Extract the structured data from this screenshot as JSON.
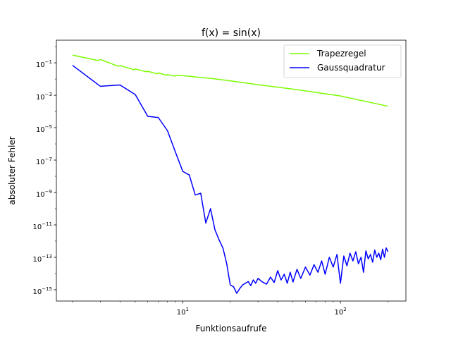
{
  "chart_data": {
    "type": "line",
    "title": "f(x) = sin(x)",
    "xlabel": "Funktionsaufrufe",
    "ylabel": "absoluter Fehler",
    "xscale": "log",
    "yscale": "log",
    "xlim": [
      1.58,
      260
    ],
    "ylim": [
      2e-16,
      2.5
    ],
    "legend": "top-right",
    "grid": false,
    "x_ticks": [
      {
        "value": 10,
        "label": "10",
        "sup": "1"
      },
      {
        "value": 100,
        "label": "10",
        "sup": "2"
      }
    ],
    "y_ticks": [
      {
        "value": 1e-15,
        "label": "10",
        "sup": "−15"
      },
      {
        "value": 1e-13,
        "label": "10",
        "sup": "−13"
      },
      {
        "value": 1e-11,
        "label": "10",
        "sup": "−11"
      },
      {
        "value": 1e-09,
        "label": "10",
        "sup": "−9"
      },
      {
        "value": 1e-07,
        "label": "10",
        "sup": "−7"
      },
      {
        "value": 1e-05,
        "label": "10",
        "sup": "−5"
      },
      {
        "value": 0.001,
        "label": "10",
        "sup": "−3"
      },
      {
        "value": 0.1,
        "label": "10",
        "sup": "−1"
      }
    ],
    "series": [
      {
        "name": "Trapezregel",
        "color": "#7cfc00",
        "x": [
          2,
          2.9,
          3.0,
          3.9,
          4.0,
          4.9,
          5.0,
          5.9,
          6.0,
          6.9,
          7.0,
          7.9,
          8.0,
          8.9,
          9.0,
          10,
          11,
          12,
          13,
          15,
          20,
          30,
          50,
          100,
          200
        ],
        "y": [
          0.3,
          0.14,
          0.16,
          0.062,
          0.068,
          0.038,
          0.042,
          0.028,
          0.03,
          0.021,
          0.024,
          0.017,
          0.019,
          0.015,
          0.017,
          0.016,
          0.015,
          0.0135,
          0.0125,
          0.011,
          0.0078,
          0.0045,
          0.0024,
          0.0009,
          0.00021
        ]
      },
      {
        "name": "Gaussquadratur",
        "color": "#0000ff",
        "x": [
          2,
          3,
          4,
          5,
          6,
          7,
          8,
          9,
          10,
          11,
          12,
          13,
          14,
          15,
          16,
          17,
          18,
          19,
          20,
          21,
          22,
          23,
          24,
          25,
          26,
          27,
          28,
          29,
          30,
          32,
          34,
          36,
          38,
          40,
          42,
          44,
          46,
          48,
          50,
          53,
          56,
          60,
          64,
          68,
          72,
          76,
          80,
          85,
          90,
          95,
          100,
          105,
          110,
          115,
          120,
          125,
          130,
          135,
          140,
          145,
          150,
          155,
          160,
          165,
          170,
          175,
          180,
          185,
          190,
          195,
          200
        ],
        "y": [
          0.07,
          0.0036,
          0.0043,
          0.0011,
          5e-05,
          4.2e-05,
          6.5e-06,
          3e-07,
          2e-08,
          1.2e-08,
          7e-10,
          9e-10,
          1.3e-11,
          1e-10,
          5e-12,
          1.2e-12,
          3.6e-13,
          4e-14,
          2e-15,
          1.5e-15,
          6e-16,
          1.2e-15,
          2e-15,
          2.5e-15,
          3.2e-15,
          1.8e-15,
          4e-15,
          2.5e-15,
          5e-15,
          3e-15,
          2.2e-15,
          6e-15,
          2.8e-15,
          1.5e-14,
          4e-15,
          9e-15,
          2.5e-15,
          1.2e-14,
          3e-15,
          1.8e-14,
          5e-15,
          2.5e-14,
          8e-15,
          3.5e-14,
          1.2e-14,
          6e-14,
          9e-15,
          1e-13,
          2.5e-14,
          1.5e-13,
          2.5e-15,
          1.2e-13,
          3e-14,
          1.8e-13,
          6e-14,
          2.2e-13,
          4e-14,
          1e-13,
          1.2e-14,
          2.5e-13,
          8e-14,
          1.5e-13,
          5e-14,
          2.8e-13,
          1e-13,
          1.8e-13,
          7e-14,
          3.2e-13,
          1e-13,
          3.8e-13,
          2.2e-13
        ]
      }
    ]
  }
}
